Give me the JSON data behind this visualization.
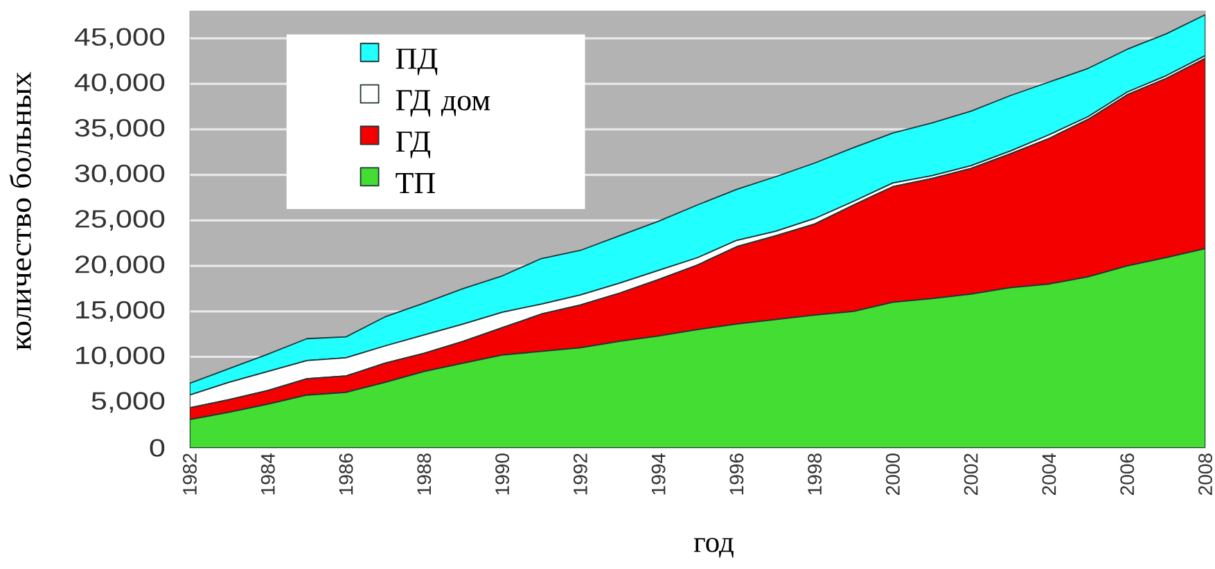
{
  "chart_data": {
    "type": "area",
    "xlabel": "год",
    "ylabel": "количество больных",
    "x": [
      1982,
      1983,
      1984,
      1985,
      1986,
      1987,
      1988,
      1989,
      1990,
      1991,
      1992,
      1993,
      1994,
      1995,
      1996,
      1997,
      1998,
      1999,
      2000,
      2001,
      2002,
      2003,
      2004,
      2005,
      2006,
      2007,
      2008
    ],
    "xlim": [
      1982,
      2008
    ],
    "xticks": [
      1982,
      1984,
      1986,
      1988,
      1990,
      1992,
      1994,
      1996,
      1998,
      2000,
      2002,
      2004,
      2006,
      2008
    ],
    "ylim": [
      0,
      48000
    ],
    "yticks": [
      0,
      {
        "value": 5000,
        "label": "5,000"
      },
      {
        "value": 10000,
        "label": "10,000"
      },
      {
        "value": 15000,
        "label": "15,000"
      },
      {
        "value": 20000,
        "label": "20,000"
      },
      {
        "value": 25000,
        "label": "25,000"
      },
      {
        "value": 30000,
        "label": "30,000"
      },
      {
        "value": 35000,
        "label": "35,000"
      },
      {
        "value": 40000,
        "label": "40,000"
      },
      {
        "value": 45000,
        "label": "45,000"
      }
    ],
    "stacked": true,
    "grid": "y",
    "legend": "top left",
    "series": [
      {
        "name": "ТП",
        "color": "#44dd33",
        "values": [
          3100,
          3900,
          4800,
          5800,
          6100,
          7200,
          8400,
          9300,
          10200,
          10600,
          11000,
          11700,
          12300,
          13000,
          13600,
          14100,
          14600,
          15000,
          16000,
          16400,
          16900,
          17600,
          18000,
          18800,
          20000,
          20900,
          21900
        ]
      },
      {
        "name": "ГД",
        "color": "#f50000",
        "values": [
          1300,
          1400,
          1500,
          1800,
          1800,
          2100,
          2000,
          2400,
          3000,
          4100,
          4700,
          5300,
          6200,
          7100,
          8500,
          9200,
          10000,
          11700,
          12700,
          13200,
          13800,
          14700,
          16000,
          17300,
          18800,
          19700,
          20900
        ]
      },
      {
        "name": "ГД дом",
        "color": "#ffffff",
        "values": [
          1400,
          1900,
          2100,
          2000,
          2000,
          1900,
          2000,
          1900,
          1700,
          1100,
          1100,
          1100,
          1000,
          800,
          700,
          500,
          600,
          400,
          400,
          300,
          300,
          300,
          400,
          300,
          300,
          300,
          300
        ]
      },
      {
        "name": "ПД",
        "color": "#22ffff",
        "values": [
          1300,
          1500,
          1900,
          2400,
          2300,
          3200,
          3500,
          3900,
          4000,
          5000,
          4900,
          5200,
          5400,
          5800,
          5600,
          6000,
          6100,
          5900,
          5500,
          5800,
          6000,
          6100,
          5800,
          5300,
          4700,
          4600,
          4500
        ]
      }
    ]
  }
}
